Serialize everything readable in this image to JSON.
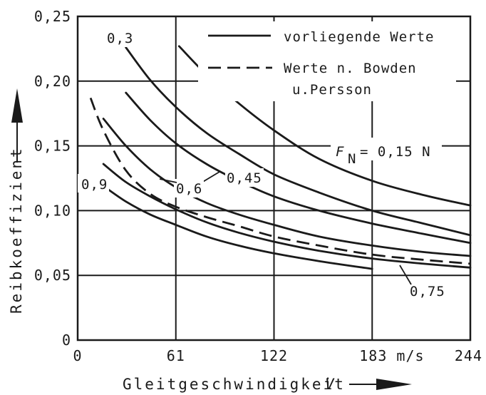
{
  "chart_data": {
    "type": "line",
    "xlabel": "Gleitgeschwindigkeit",
    "xlabel_symbol": "V",
    "ylabel": "Reibkoeffizient",
    "xlim": [
      0,
      244
    ],
    "ylim": [
      0,
      0.25
    ],
    "grid": true,
    "x_ticks": [
      {
        "value": 0,
        "label": "0"
      },
      {
        "value": 61,
        "label": "61"
      },
      {
        "value": 122,
        "label": "122"
      },
      {
        "value": 183,
        "label": "183 m/s"
      },
      {
        "value": 244,
        "label": "244"
      }
    ],
    "y_ticks": [
      {
        "value": 0,
        "label": "0"
      },
      {
        "value": 0.05,
        "label": "0,05"
      },
      {
        "value": 0.1,
        "label": "0,10"
      },
      {
        "value": 0.15,
        "label": "0,15"
      },
      {
        "value": 0.2,
        "label": "0,20"
      },
      {
        "value": 0.25,
        "label": "0,25"
      }
    ],
    "legend": {
      "placement": "top-right",
      "entries": [
        {
          "label": "vorliegende Werte",
          "style": "solid"
        },
        {
          "label": "Werte n. Bowden",
          "label2": "u.Persson",
          "style": "dashed"
        }
      ]
    },
    "series": [
      {
        "name": "0,15 N",
        "style": "solid",
        "x": [
          63,
          80,
          100,
          122,
          150,
          183,
          215,
          244
        ],
        "y": [
          0.227,
          0.205,
          0.183,
          0.162,
          0.14,
          0.123,
          0.112,
          0.104
        ]
      },
      {
        "name": "0,3",
        "style": "solid",
        "x": [
          30,
          45,
          61,
          80,
          100,
          122,
          150,
          183,
          215,
          244
        ],
        "y": [
          0.226,
          0.201,
          0.18,
          0.16,
          0.144,
          0.128,
          0.114,
          0.1,
          0.09,
          0.081
        ]
      },
      {
        "name": "0,45",
        "style": "solid",
        "x": [
          30,
          45,
          61,
          80,
          100,
          122,
          150,
          183,
          215,
          244
        ],
        "y": [
          0.191,
          0.17,
          0.152,
          0.136,
          0.123,
          0.111,
          0.1,
          0.09,
          0.082,
          0.075
        ]
      },
      {
        "name": "0,6",
        "style": "solid",
        "x": [
          16,
          30,
          45,
          61,
          80,
          100,
          122,
          150,
          183,
          215,
          244
        ],
        "y": [
          0.171,
          0.15,
          0.132,
          0.118,
          0.106,
          0.097,
          0.089,
          0.08,
          0.073,
          0.068,
          0.065
        ]
      },
      {
        "name": "0,75",
        "style": "solid",
        "x": [
          16,
          30,
          45,
          61,
          80,
          100,
          122,
          150,
          183,
          215,
          244
        ],
        "y": [
          0.136,
          0.122,
          0.111,
          0.101,
          0.091,
          0.083,
          0.076,
          0.069,
          0.063,
          0.059,
          0.056
        ]
      },
      {
        "name": "0,9",
        "style": "solid",
        "x": [
          16,
          30,
          45,
          61,
          80,
          100,
          122,
          150,
          183
        ],
        "y": [
          0.119,
          0.107,
          0.097,
          0.089,
          0.08,
          0.073,
          0.067,
          0.061,
          0.055
        ]
      },
      {
        "name": "Bowden",
        "style": "dashed",
        "x": [
          8,
          16,
          30,
          45,
          61,
          80,
          100,
          122,
          150,
          183,
          215,
          244
        ],
        "y": [
          0.187,
          0.162,
          0.131,
          0.113,
          0.103,
          0.095,
          0.088,
          0.08,
          0.073,
          0.066,
          0.062,
          0.059
        ]
      }
    ],
    "annotations": [
      {
        "text": "0,3",
        "role": "curve-label"
      },
      {
        "text": "0,45",
        "role": "curve-label"
      },
      {
        "text": "0,6",
        "role": "curve-label"
      },
      {
        "text": "0,9",
        "role": "curve-label"
      },
      {
        "text": "0,75",
        "role": "curve-label"
      },
      {
        "text": "F",
        "sub": "N",
        "after": "= 0,15 N",
        "role": "curve-label"
      }
    ]
  }
}
